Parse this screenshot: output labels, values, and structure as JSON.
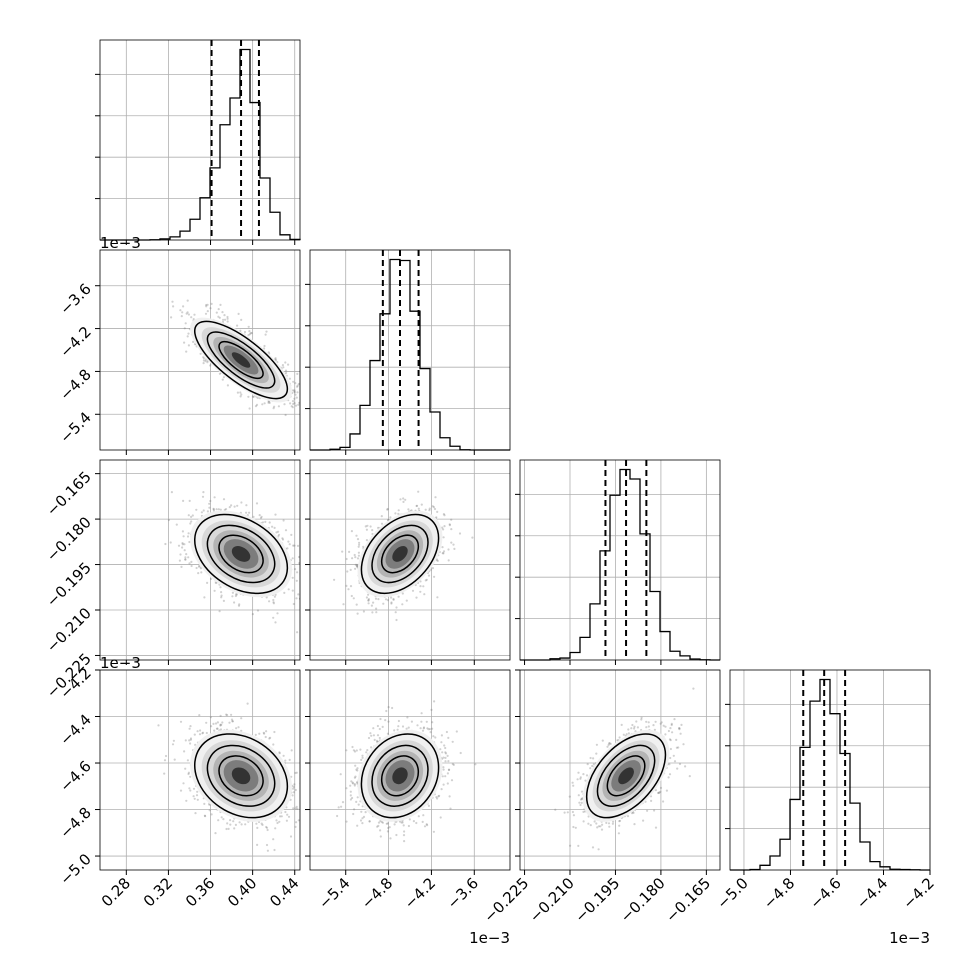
{
  "chart_data": {
    "type": "corner",
    "grid": true,
    "colors": {
      "line": "#000000",
      "scatter": "#6f6f6f",
      "grid": "#b0b0b0",
      "background": "#ffffff"
    },
    "parameters": [
      {
        "index": 0,
        "range": [
          0.255,
          0.445
        ],
        "ticks": [
          0.28,
          0.32,
          0.36,
          0.4,
          0.44
        ],
        "tick_labels": [
          "0.28",
          "0.32",
          "0.36",
          "0.40",
          "0.44"
        ],
        "offset_text": "",
        "mean": 0.389,
        "sd": 0.022,
        "quantiles": [
          0.361,
          0.389,
          0.406
        ]
      },
      {
        "index": 1,
        "range": [
          -5.9,
          -3.1
        ],
        "ticks": [
          -5.4,
          -4.8,
          -4.2,
          -3.6
        ],
        "tick_labels": [
          "−5.4",
          "−4.8",
          "−4.2",
          "−3.6"
        ],
        "offset_text": "1e−3",
        "mean": -4.64,
        "sd": 0.27,
        "quantiles": [
          -4.88,
          -4.64,
          -4.38
        ]
      },
      {
        "index": 2,
        "range": [
          -0.2265,
          -0.1605
        ],
        "ticks": [
          -0.225,
          -0.21,
          -0.195,
          -0.18,
          -0.165
        ],
        "tick_labels": [
          "−0.225",
          "−0.210",
          "−0.195",
          "−0.180",
          "−0.165"
        ],
        "offset_text": "",
        "mean": -0.1915,
        "sd": 0.0065,
        "quantiles": [
          -0.1983,
          -0.1915,
          -0.1848
        ]
      },
      {
        "index": 3,
        "range": [
          -5.06,
          -4.2
        ],
        "ticks": [
          -5.0,
          -4.8,
          -4.6,
          -4.4,
          -4.2
        ],
        "tick_labels": [
          "−5.0",
          "−4.8",
          "−4.6",
          "−4.4",
          "−4.2"
        ],
        "offset_text": "1e−3",
        "mean": -4.655,
        "sd": 0.09,
        "quantiles": [
          -4.745,
          -4.655,
          -4.565
        ]
      }
    ],
    "correlations": {
      "1-0": -0.75,
      "2-0": -0.35,
      "2-1": 0.4,
      "3-0": -0.25,
      "3-1": 0.2,
      "3-2": 0.5
    },
    "histogram": {
      "bins": 20,
      "style": "step",
      "quantile_lines": "dashed"
    },
    "contour_levels": 3
  }
}
